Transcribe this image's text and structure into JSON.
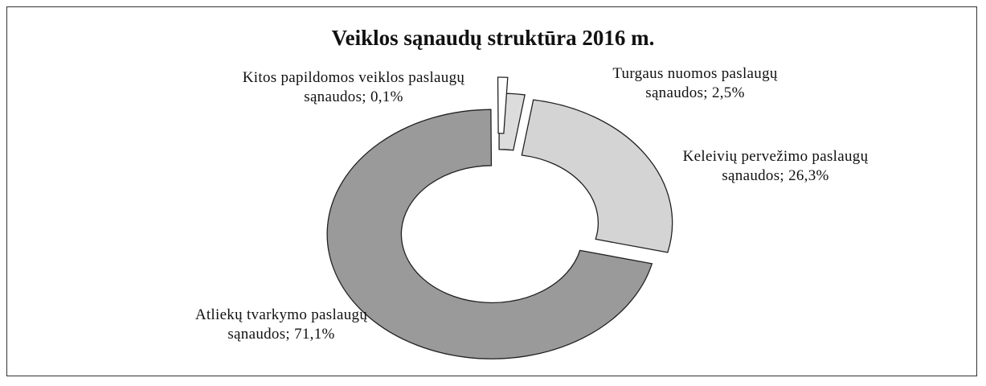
{
  "chart_data": {
    "type": "donut",
    "title": "Veiklos sąnaudų struktūra 2016 m.",
    "categories": [
      "Turgaus nuomos paslaugų sąnaudos;",
      "Keleivių pervežimo paslaugų sąnaudos;",
      "Atliekų tvarkymo paslaugų sąnaudos;",
      "Kitos papildomos veiklos paslaugų sąnaudos;"
    ],
    "values": [
      2.5,
      26.3,
      71.1,
      0.1
    ],
    "value_labels": [
      "2,5%",
      "26,3%",
      "71,1%",
      "0,1%"
    ],
    "colors": [
      "#dcdcdc",
      "#d4d4d4",
      "#9a9a9a",
      "#ffffff"
    ]
  }
}
